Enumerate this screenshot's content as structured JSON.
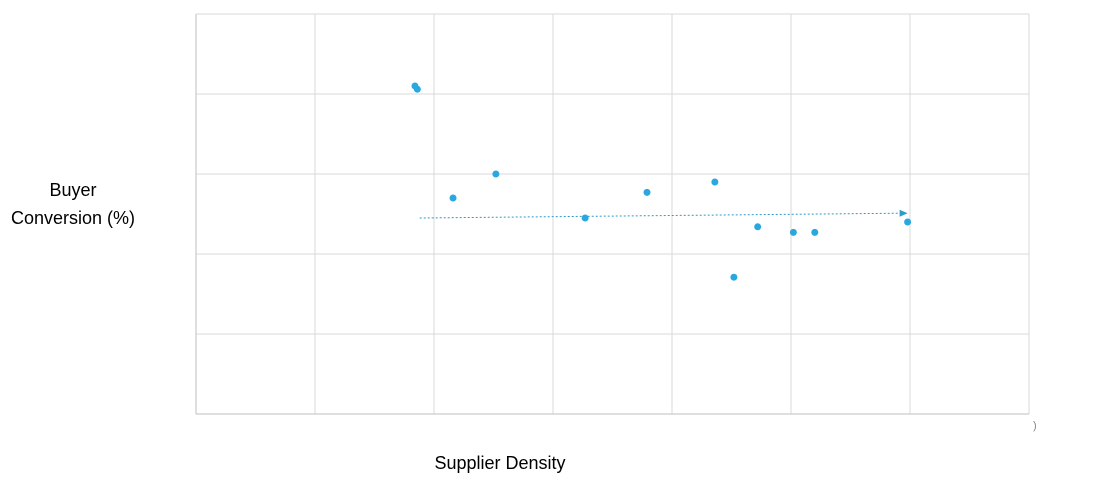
{
  "chart_data": {
    "type": "scatter",
    "title": "",
    "xlabel": "Supplier Density",
    "ylabel_lines": [
      "Buyer",
      "Conversion (%)"
    ],
    "xlim": [
      0,
      7
    ],
    "ylim": [
      0,
      5
    ],
    "grid": true,
    "legend": "none",
    "point_color": "#29A8DF",
    "trend_color": "#2E9BC8",
    "grid_color": "#D9D9D9",
    "axis_color": "#BFBFBF",
    "points": [
      {
        "x": 1.84,
        "y": 4.1
      },
      {
        "x": 1.86,
        "y": 4.06
      },
      {
        "x": 2.16,
        "y": 2.7
      },
      {
        "x": 2.52,
        "y": 3.0
      },
      {
        "x": 3.27,
        "y": 2.45
      },
      {
        "x": 3.79,
        "y": 2.77
      },
      {
        "x": 4.36,
        "y": 2.9
      },
      {
        "x": 4.52,
        "y": 1.71
      },
      {
        "x": 4.72,
        "y": 2.34
      },
      {
        "x": 5.02,
        "y": 2.27
      },
      {
        "x": 5.2,
        "y": 2.27
      },
      {
        "x": 5.98,
        "y": 2.4
      }
    ],
    "trendline": {
      "x": [
        1.88,
        5.98
      ],
      "y": [
        2.45,
        2.51
      ]
    },
    "stray_mark": ")"
  }
}
